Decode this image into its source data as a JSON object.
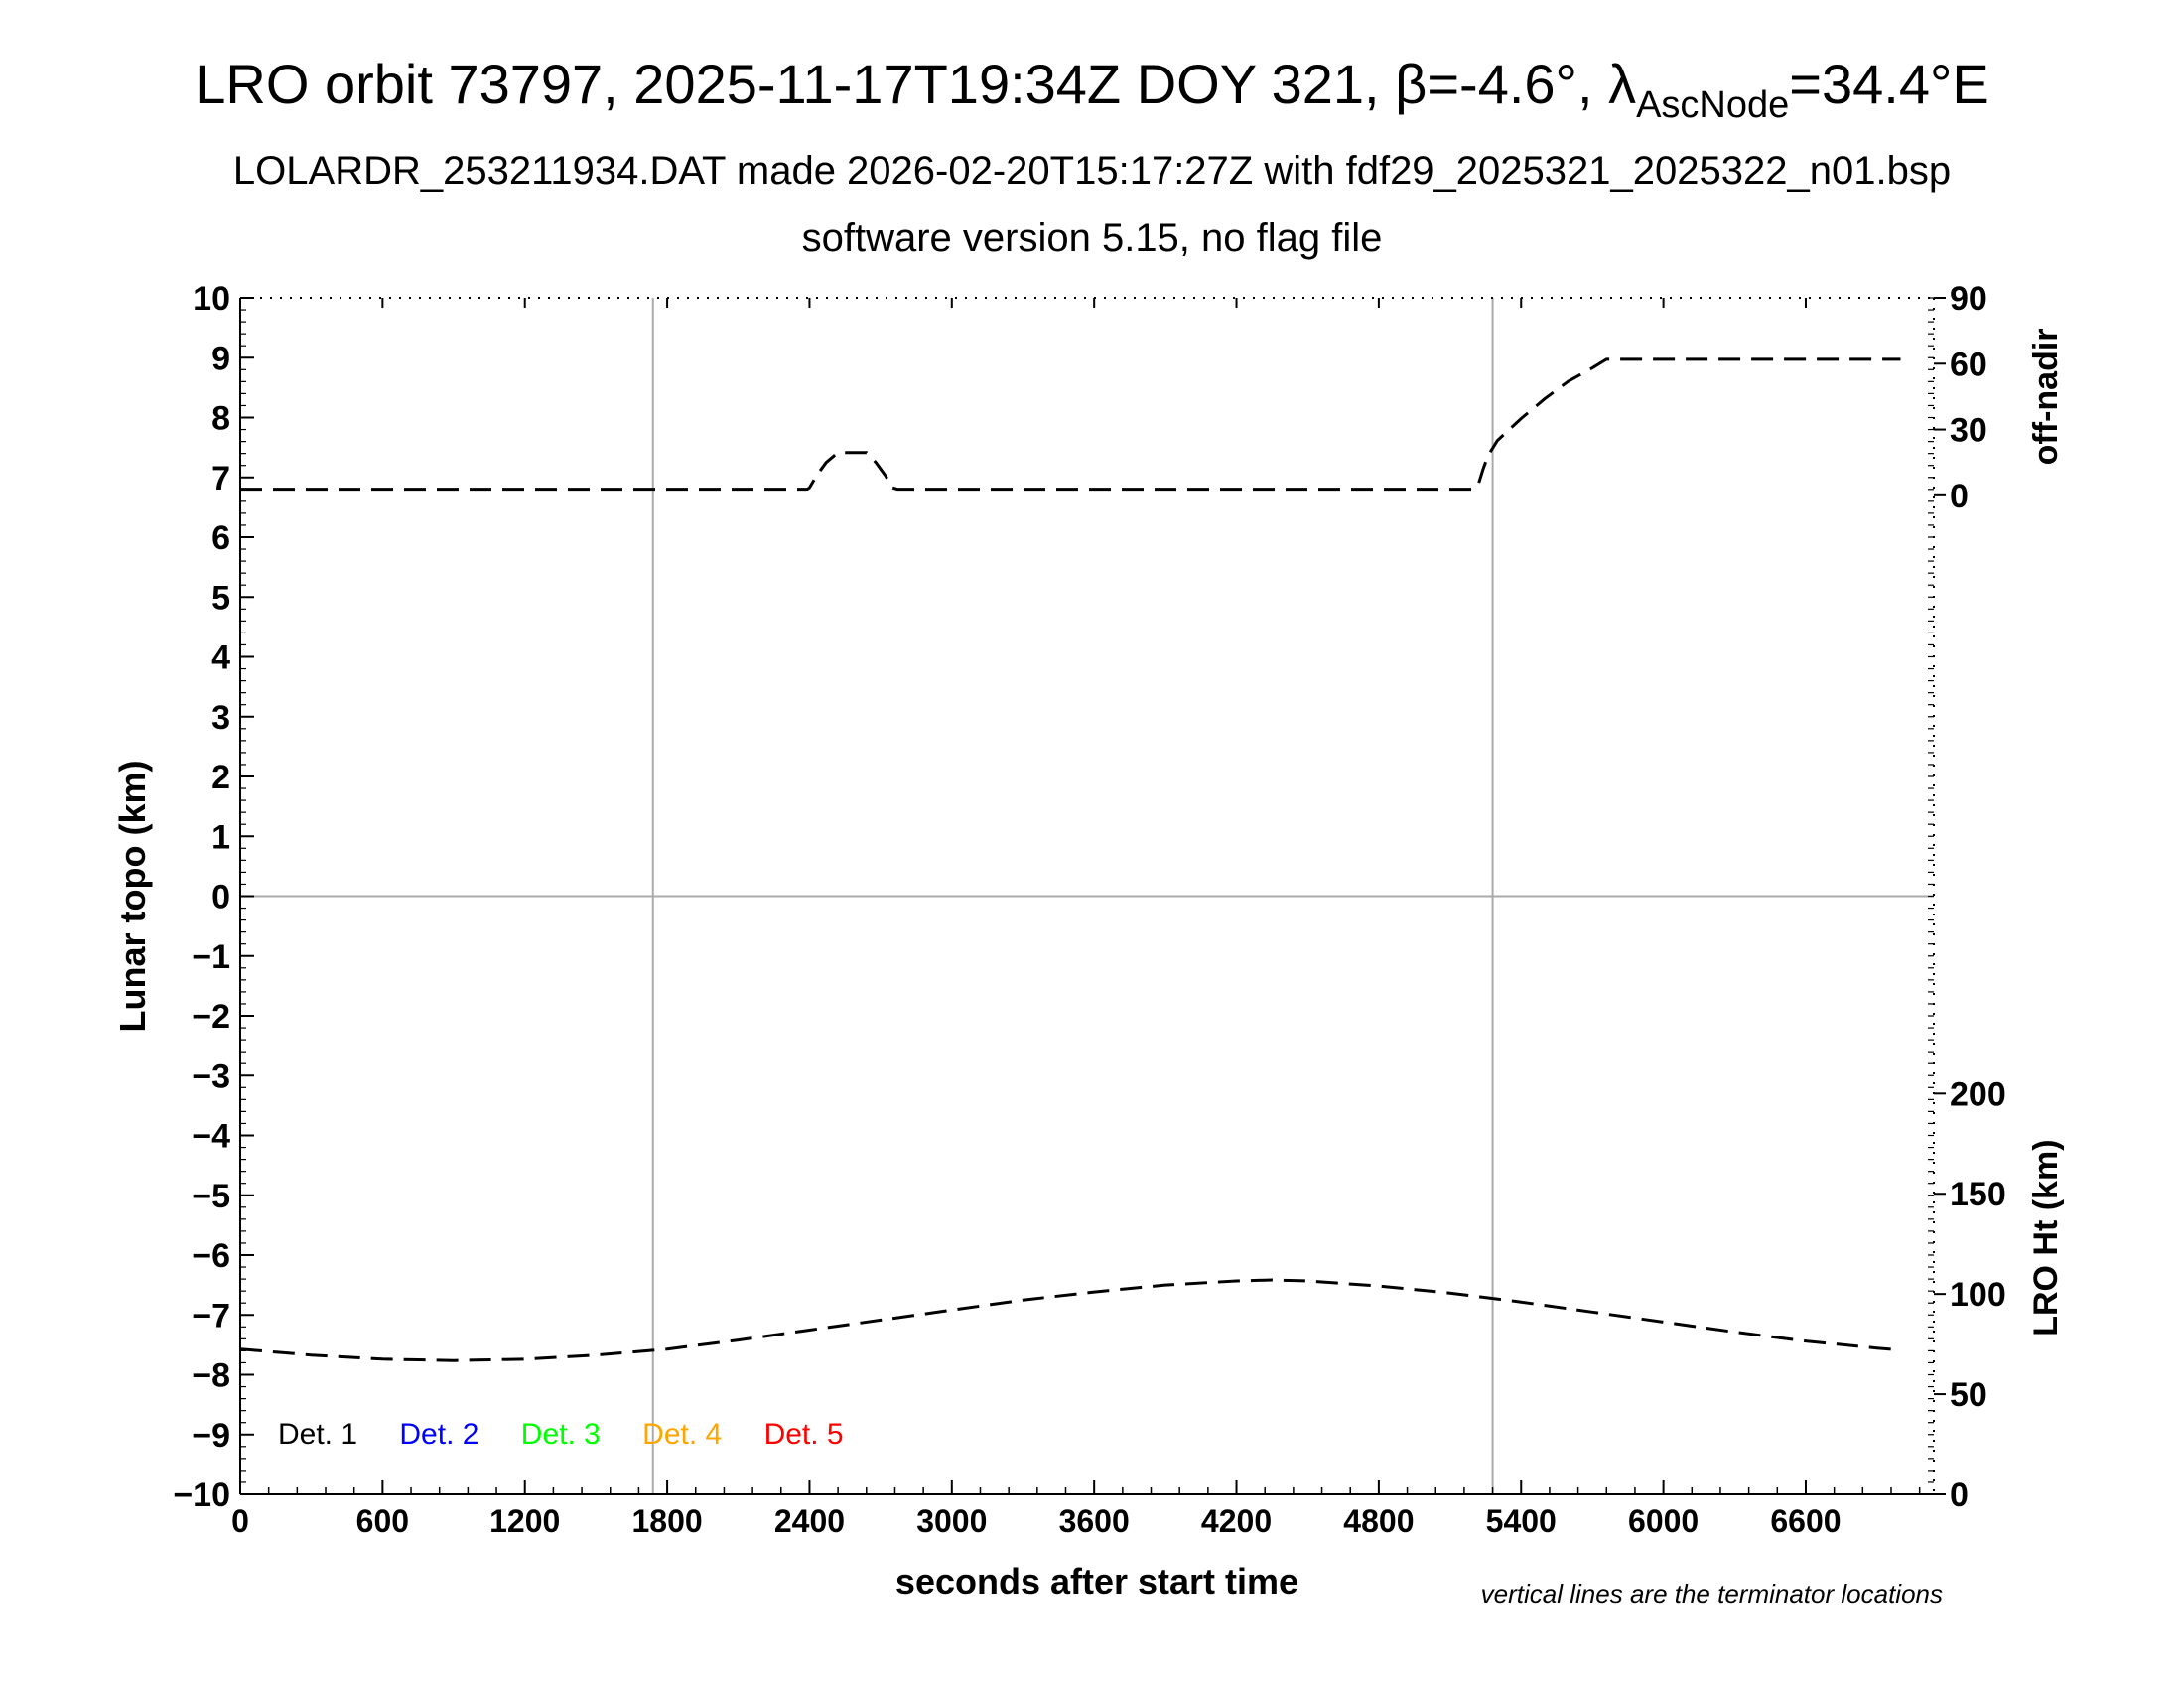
{
  "title": {
    "prefix": "LRO orbit 73797, 2025-11-17T19:34Z DOY 321, β=-4.6°, λ",
    "subscript": "AscNode",
    "suffix": "=34.4°E"
  },
  "subtitle": "LOLARDR_253211934.DAT made 2026-02-20T15:17:27Z with fdf29_2025321_2025322_n01.bsp",
  "subtitle2": "software version 5.15, no flag file",
  "footnote": "vertical lines are the terminator locations",
  "legend": [
    {
      "label": "Det. 1",
      "color": "#000000"
    },
    {
      "label": "Det. 2",
      "color": "#0000ff"
    },
    {
      "label": "Det. 3",
      "color": "#00ff00"
    },
    {
      "label": "Det. 4",
      "color": "#ffa500"
    },
    {
      "label": "Det. 5",
      "color": "#ff0000"
    }
  ],
  "chart_data": {
    "type": "line",
    "xlabel": "seconds after start time",
    "ylabel": "Lunar topo (km)",
    "y2label_top": "off-nadir",
    "y2label_bottom": "LRO Ht (km)",
    "xlim": [
      0,
      7140
    ],
    "ylim": [
      -10,
      10
    ],
    "x_ticks": [
      0,
      600,
      1200,
      1800,
      2400,
      3000,
      3600,
      4200,
      4800,
      5400,
      6000,
      6600
    ],
    "y_ticks": [
      10,
      9,
      8,
      7,
      6,
      5,
      4,
      3,
      2,
      1,
      0,
      -1,
      -2,
      -3,
      -4,
      -5,
      -6,
      -7,
      -8,
      -9,
      -10
    ],
    "y_tick_labels": [
      "10",
      "9",
      "8",
      "7",
      "6",
      "5",
      "4",
      "3",
      "2",
      "1",
      "0",
      "−1",
      "−2",
      "−3",
      "−4",
      "−5",
      "−6",
      "−7",
      "−8",
      "−9",
      "−10"
    ],
    "offnadir_ticks": [
      0,
      30,
      60,
      90
    ],
    "height_ticks": [
      0,
      50,
      100,
      150,
      200
    ],
    "terminator_x": [
      1740,
      5280
    ],
    "zero_line_y": 0,
    "series": [
      {
        "axis": "off-nadir",
        "style": "dashed",
        "color": "#000000",
        "x": [
          0,
          600,
          1200,
          1800,
          2390,
          2400,
          2430,
          2470,
          2520,
          2580,
          2640,
          2680,
          2720,
          2750,
          2770,
          2800,
          2900,
          2950,
          3000,
          3600,
          4200,
          4800,
          5200,
          5220,
          5240,
          5260,
          5300,
          5400,
          5500,
          5600,
          5700,
          5760,
          5800,
          6000,
          6600,
          7000
        ],
        "y": [
          2.8,
          2.8,
          2.8,
          2.8,
          2.8,
          3.5,
          9,
          15,
          19.5,
          19.5,
          19.5,
          15,
          9,
          3.5,
          2.8,
          2.8,
          2.8,
          2.8,
          2.8,
          2.8,
          2.8,
          2.8,
          2.8,
          5,
          12,
          18,
          25,
          35,
          44,
          52,
          58,
          62,
          62,
          62,
          62,
          62
        ]
      },
      {
        "axis": "LRO Ht (km)",
        "style": "dashed",
        "color": "#000000",
        "x": [
          0,
          300,
          600,
          900,
          1200,
          1500,
          1800,
          2100,
          2400,
          2700,
          3000,
          3300,
          3600,
          3900,
          4200,
          4350,
          4500,
          4800,
          5100,
          5400,
          5700,
          6000,
          6300,
          6600,
          6900,
          7000
        ],
        "y": [
          72.5,
          69.5,
          67.5,
          66.8,
          67.5,
          69.5,
          72.5,
          77,
          82,
          87,
          92,
          97,
          101,
          104.5,
          106.5,
          107,
          106.5,
          104,
          100.5,
          96,
          91,
          86,
          81,
          76.5,
          73,
          72
        ]
      }
    ]
  }
}
